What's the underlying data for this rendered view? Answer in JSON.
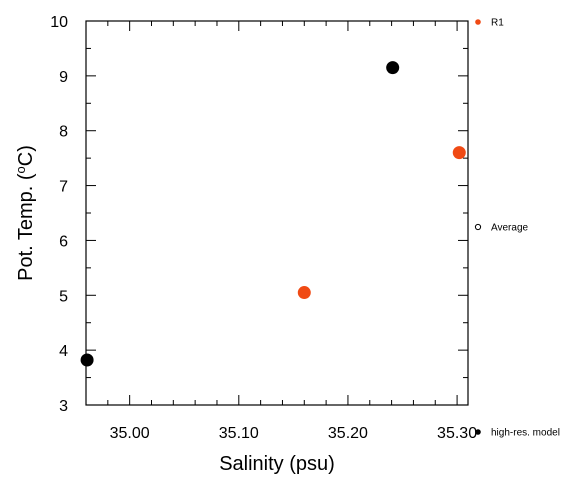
{
  "chart_data": {
    "type": "scatter",
    "xlabel": "Salinity (psu)",
    "ylabel": "Pot. Temp. (",
    "ylabel_sup": "o",
    "ylabel_tail": "C)",
    "xlim": [
      34.96,
      35.31
    ],
    "ylim": [
      3,
      10
    ],
    "x_ticks": [
      35.0,
      35.1,
      35.2,
      35.3
    ],
    "x_tick_labels": [
      "35.00",
      "35.10",
      "35.20",
      "35.30"
    ],
    "y_ticks": [
      3,
      4,
      5,
      6,
      7,
      8,
      9,
      10
    ],
    "y_tick_labels": [
      "3",
      "4",
      "5",
      "6",
      "7",
      "8",
      "9",
      "10"
    ],
    "grid": false,
    "legend_position": "right",
    "series": [
      {
        "name": "R1",
        "color": "#f04a14",
        "points": [
          {
            "x": 35.16,
            "y": 5.05
          },
          {
            "x": 35.302,
            "y": 7.6
          }
        ]
      },
      {
        "name": "high-res. model",
        "color": "#000000",
        "points": [
          {
            "x": 34.961,
            "y": 3.82
          },
          {
            "x": 35.241,
            "y": 9.15
          }
        ]
      }
    ],
    "legend": [
      {
        "label": "R1",
        "marker": "filled-dot",
        "color": "#f04a14"
      },
      {
        "label": "Average",
        "marker": "open-circle",
        "color": "#000000"
      },
      {
        "label": "high-res. model",
        "marker": "filled-dot",
        "color": "#000000"
      }
    ]
  }
}
